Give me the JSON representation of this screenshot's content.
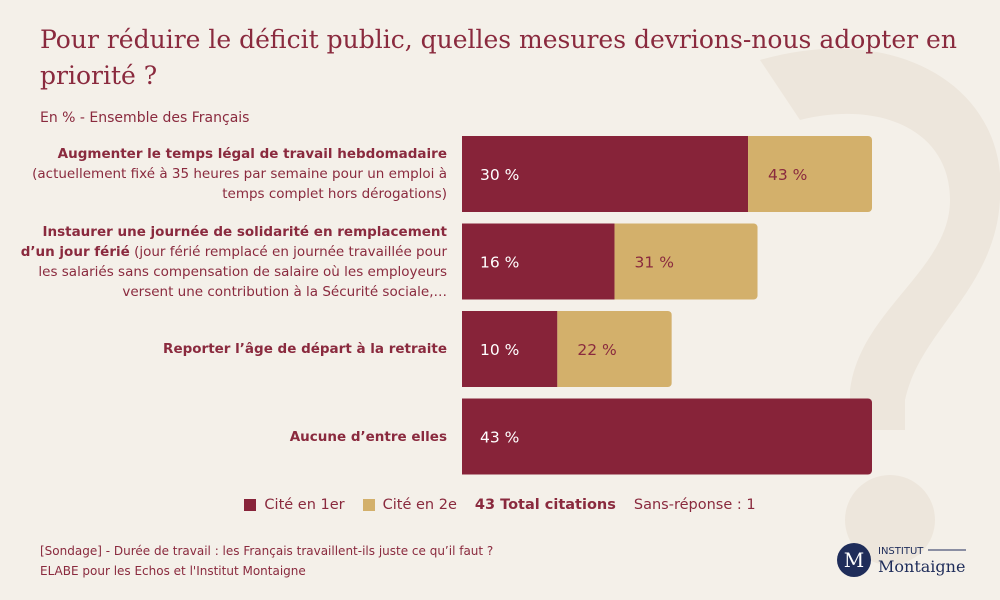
{
  "chart_data": {
    "type": "stacked-bar-horizontal",
    "title": "Pour réduire le déficit public, quelles mesures devrions-nous adopter en priorité ?",
    "subtitle": "En % - Ensemble des Français",
    "categories": [
      "Augmenter le temps légal de travail hebdomadaire",
      "Instaurer une journée de solidarité en remplacement d’un jour férié",
      "Reporter l’âge de départ à la retraite",
      "Aucune d’entre elles"
    ],
    "category_details": [
      "(actuellement fixé à 35 heures par semaine pour un emploi à temps complet hors dérogations)",
      "(jour férié remplacé en journée travaillée pour les salariés sans compensation de salaire où les employeurs versent une contribution à la Sécurité sociale,…",
      null,
      null
    ],
    "series": [
      {
        "name": "Cité en 1er",
        "color": "#872339",
        "label_color": "#ffffff",
        "values": [
          30,
          16,
          10,
          43
        ],
        "value_labels": [
          "30 %",
          "16 %",
          "10 %",
          "43 %"
        ]
      },
      {
        "name": "Cité en 2e",
        "color": "#d3b06b",
        "label_color": "#8a2a3e",
        "values": [
          13,
          15,
          12,
          null
        ]
      }
    ],
    "totals_name": "43 Total citations",
    "totals": [
      43,
      31,
      22,
      null
    ],
    "totals_labels": [
      "43 %",
      "31 %",
      "22 %",
      null
    ],
    "no_answer": "Sans-réponse : 1",
    "source": [
      "[Sondage] - Durée de travail : les Français travaillent-ils juste ce qu’il faut ?",
      "ELABE pour les Echos et l'Institut Montaigne"
    ]
  },
  "logo": {
    "letter": "M",
    "top": "INSTITUT",
    "name": "Montaigne"
  }
}
